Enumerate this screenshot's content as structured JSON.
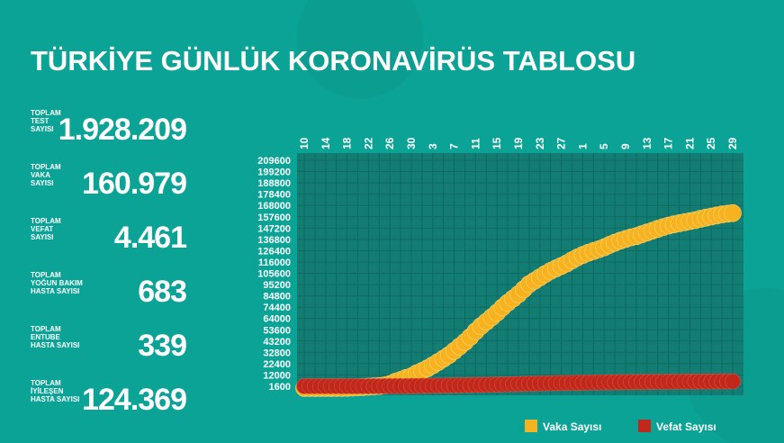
{
  "header": {
    "title": "TÜRKİYE GÜNLÜK KORONAVİRÜS TABLOSU"
  },
  "stats": [
    {
      "label": [
        "TOPLAM",
        "TEST",
        "SAYISI"
      ],
      "value": "1.928.209"
    },
    {
      "label": [
        "TOPLAM",
        "VAKA",
        "SAYISI"
      ],
      "value": "160.979"
    },
    {
      "label": [
        "TOPLAM",
        "VEFAT",
        "SAYISI"
      ],
      "value": "4.461"
    },
    {
      "label": [
        "TOPLAM",
        "YOĞUN BAKIM",
        "HASTA SAYISI"
      ],
      "value": "683"
    },
    {
      "label": [
        "TOPLAM",
        "ENTUBE",
        "HASTA SAYISI"
      ],
      "value": "339"
    },
    {
      "label": [
        "TOPLAM",
        "İYİLEŞEN",
        "HASTA SAYISI"
      ],
      "value": "124.369"
    }
  ],
  "chart_data": {
    "type": "scatter-line",
    "categories": [
      "10",
      null,
      null,
      null,
      "14",
      null,
      null,
      null,
      "18",
      null,
      null,
      null,
      "22",
      null,
      null,
      null,
      "26",
      null,
      null,
      null,
      "30",
      null,
      null,
      null,
      "3",
      null,
      null,
      null,
      "7",
      null,
      null,
      null,
      "11",
      null,
      null,
      null,
      "15",
      null,
      null,
      null,
      "19",
      null,
      null,
      null,
      "23",
      null,
      null,
      null,
      "27",
      null,
      null,
      null,
      "1",
      null,
      null,
      null,
      "5",
      null,
      null,
      null,
      "9",
      null,
      null,
      null,
      "13",
      null,
      null,
      null,
      "17",
      null,
      null,
      null,
      "21",
      null,
      null,
      null,
      "25",
      null,
      null,
      null,
      "29"
    ],
    "series": [
      {
        "name": "Vaka Sayısı",
        "color": "#f7b21f",
        "values": [
          0,
          1,
          1,
          5,
          6,
          18,
          47,
          98,
          191,
          359,
          670,
          947,
          1236,
          1529,
          1872,
          2433,
          3629,
          5698,
          7402,
          9217,
          10827,
          13531,
          15679,
          18135,
          20921,
          23934,
          27069,
          30217,
          34109,
          38226,
          42282,
          47029,
          52167,
          56956,
          61049,
          65111,
          69392,
          74193,
          78546,
          82329,
          86306,
          90980,
          95591,
          98674,
          101790,
          104912,
          107773,
          110130,
          112261,
          114653,
          117589,
          120204,
          122392,
          124375,
          126045,
          127659,
          129491,
          131744,
          133721,
          135569,
          137115,
          138657,
          139771,
          141475,
          143114,
          144749,
          146457,
          148067,
          149435,
          150593,
          151615,
          152587,
          153548,
          154500,
          155686,
          156827,
          157814,
          158762,
          159797,
          160400,
          160979
        ]
      },
      {
        "name": "Vefat Sayısı",
        "color": "#c0281b",
        "values": [
          0,
          0,
          0,
          0,
          0,
          0,
          0,
          1,
          2,
          3,
          9,
          21,
          30,
          37,
          44,
          59,
          75,
          92,
          108,
          131,
          168,
          214,
          277,
          356,
          425,
          501,
          574,
          649,
          725,
          812,
          908,
          1006,
          1101,
          1198,
          1296,
          1403,
          1518,
          1643,
          1769,
          1890,
          2017,
          2140,
          2259,
          2376,
          2491,
          2600,
          2706,
          2805,
          2900,
          2992,
          3081,
          3174,
          3258,
          3336,
          3397,
          3461,
          3520,
          3584,
          3641,
          3689,
          3739,
          3786,
          3841,
          3894,
          3952,
          4007,
          4055,
          4096,
          4140,
          4171,
          4199,
          4222,
          4249,
          4276,
          4308,
          4340,
          4369,
          4397,
          4413,
          4440,
          4461
        ]
      }
    ],
    "ylim": [
      1600,
      209600
    ],
    "yticks": [
      1600,
      12000,
      22400,
      32800,
      43200,
      53600,
      64000,
      74400,
      84800,
      95200,
      105600,
      116000,
      126400,
      136800,
      147200,
      157600,
      168000,
      178400,
      188800,
      199200,
      209600
    ],
    "grid": true,
    "legend": "bottom-right"
  }
}
